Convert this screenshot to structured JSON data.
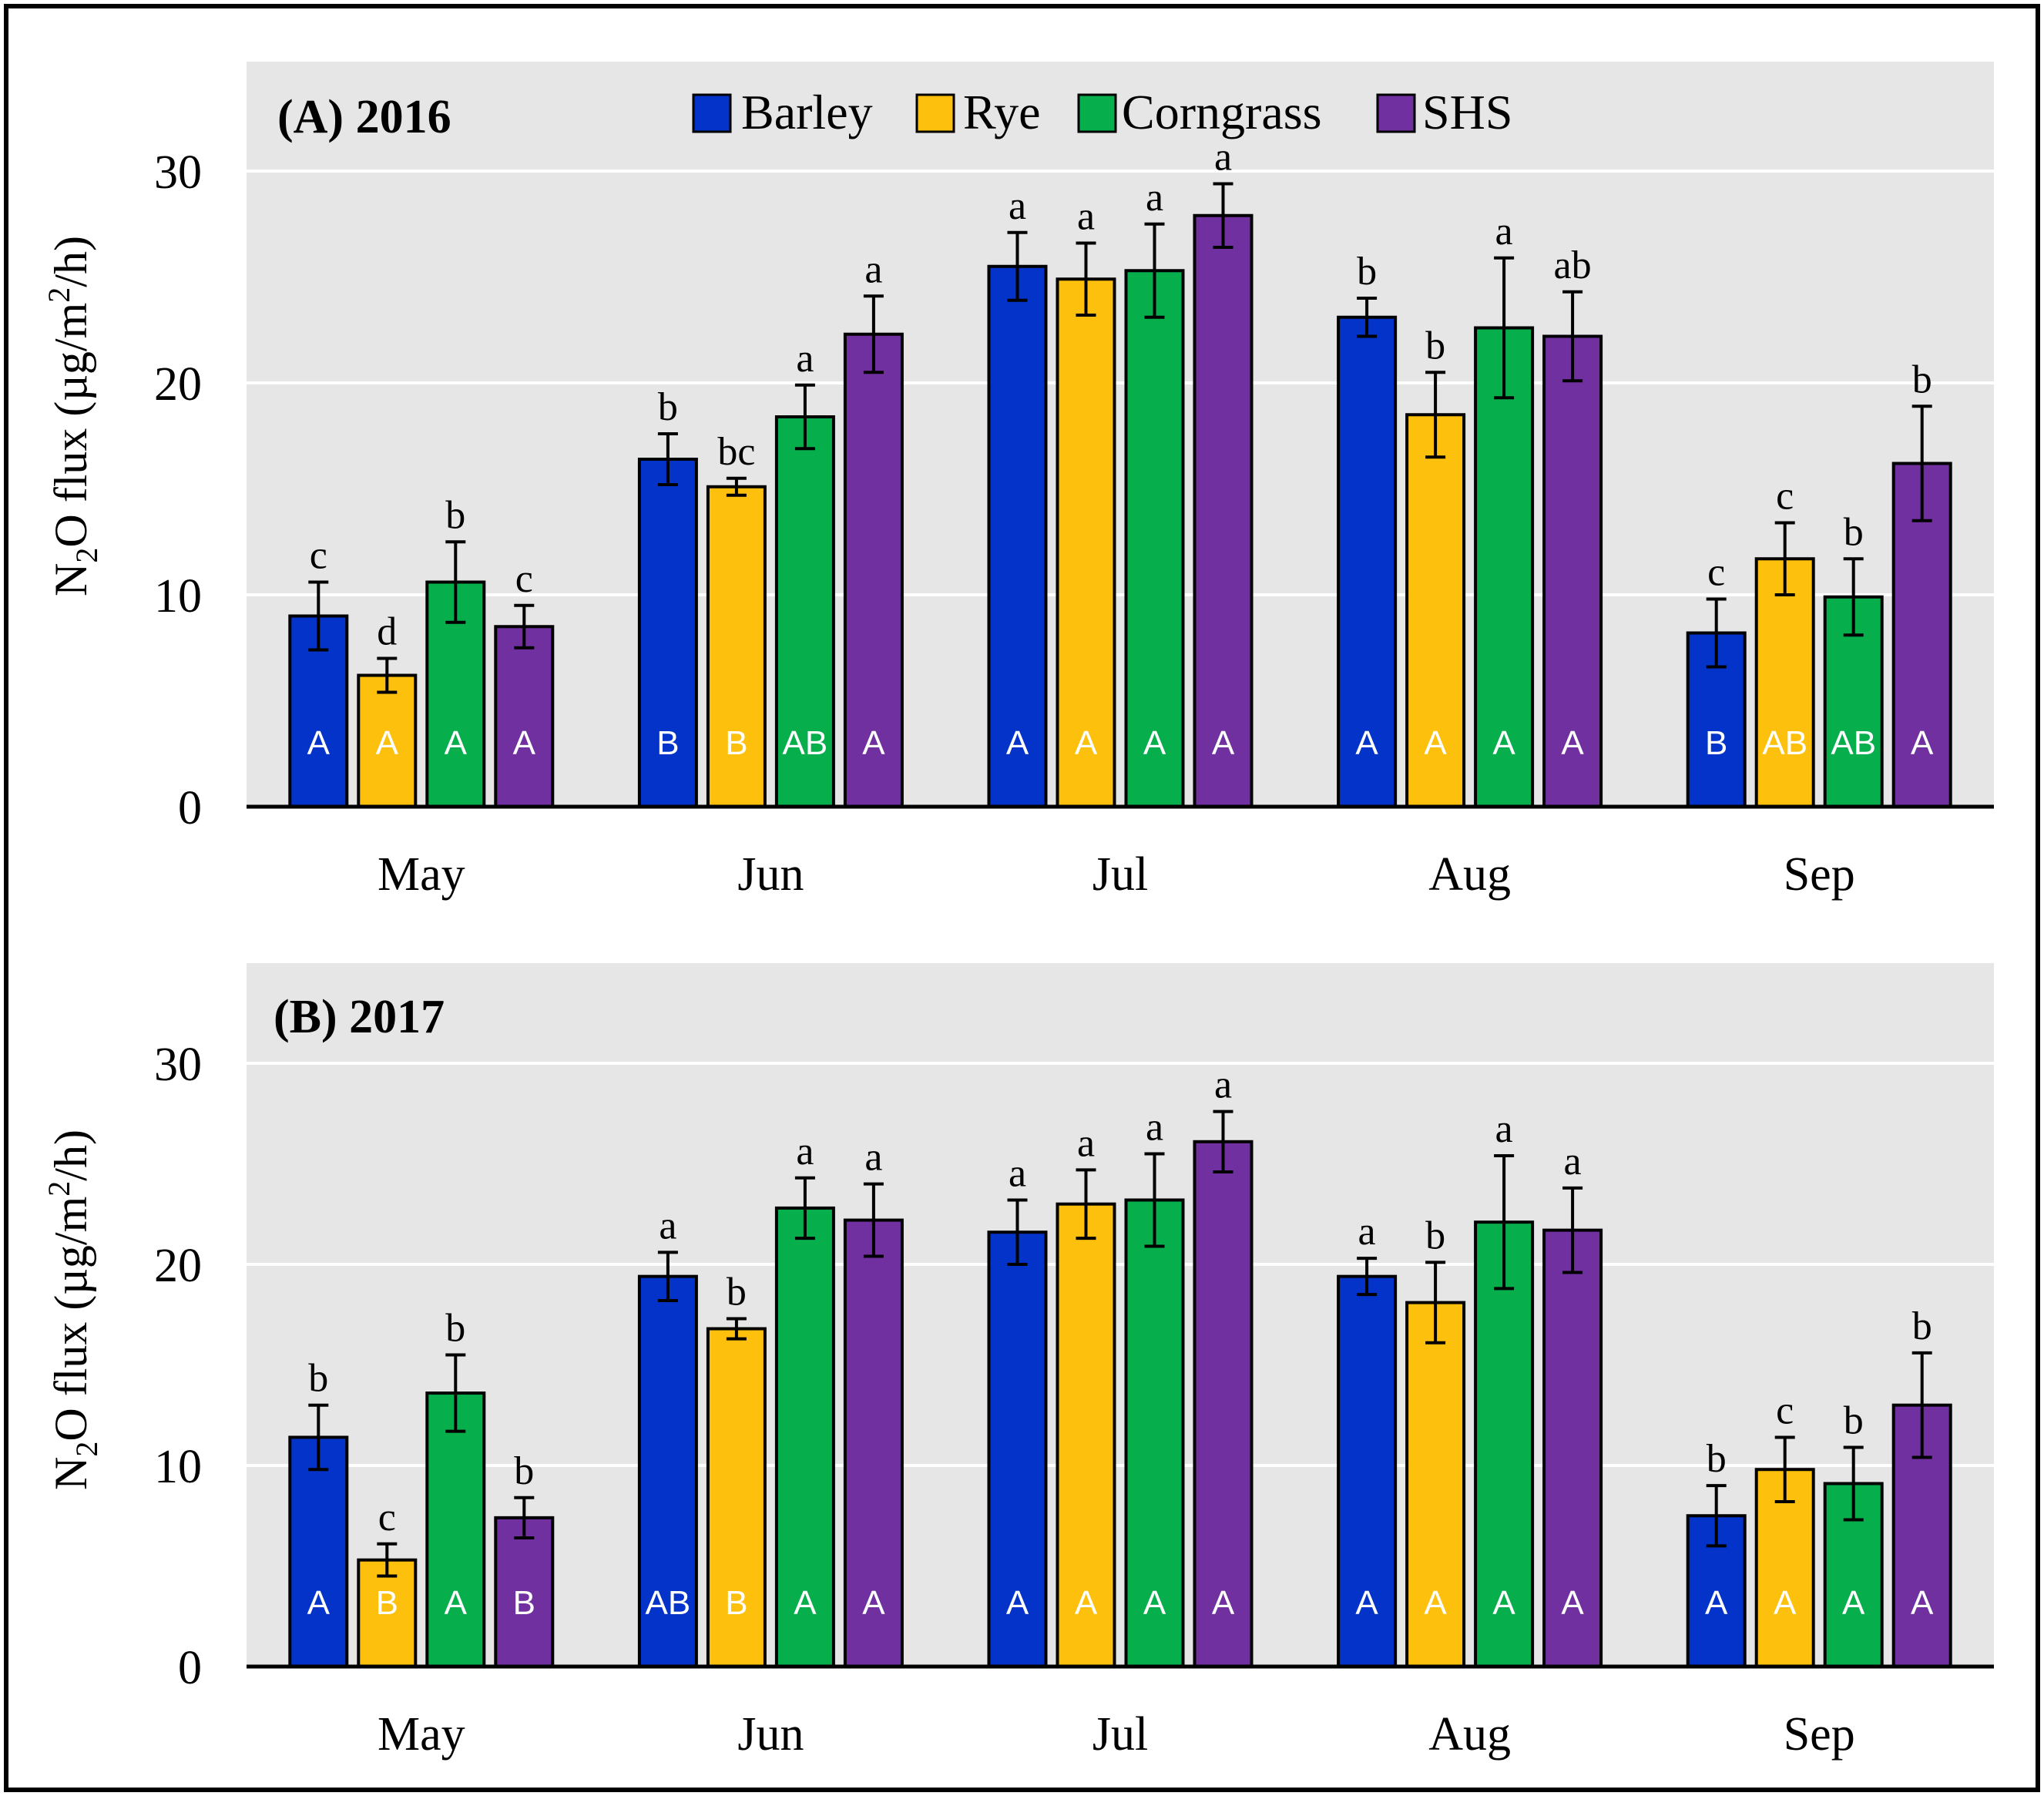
{
  "colors": {
    "Barley": "#0433c9",
    "Rye": "#fdc00d",
    "Corngrass": "#07ae4c",
    "SHS": "#7030a0",
    "plot_bg": "#e6e6e6",
    "gridline": "#ffffff",
    "axis": "#000000"
  },
  "legend": [
    "Barley",
    "Rye",
    "Corngrass",
    "SHS"
  ],
  "chart_data": [
    {
      "type": "bar",
      "title": "(A) 2016",
      "xlabel": "",
      "ylabel": "N2O flux (µg/m2/h)",
      "ylim": [
        0,
        35
      ],
      "yticks": [
        0,
        10,
        20,
        30
      ],
      "legend_position": "top-center",
      "categories": [
        "May",
        "Jun",
        "Jul",
        "Aug",
        "Sep"
      ],
      "series": [
        {
          "name": "Barley",
          "values": [
            9.0,
            16.4,
            25.5,
            23.1,
            8.2
          ],
          "errors": [
            1.6,
            1.2,
            1.6,
            0.9,
            1.6
          ],
          "letters": [
            "c",
            "b",
            "a",
            "b",
            "c"
          ],
          "inner_letters": [
            "A",
            "B",
            "A",
            "A",
            "B"
          ]
        },
        {
          "name": "Rye",
          "values": [
            6.2,
            15.1,
            24.9,
            18.5,
            11.7
          ],
          "errors": [
            0.8,
            0.4,
            1.7,
            2.0,
            1.7
          ],
          "letters": [
            "d",
            "bc",
            "a",
            "b",
            "c"
          ],
          "inner_letters": [
            "A",
            "B",
            "A",
            "A",
            "AB"
          ]
        },
        {
          "name": "Corngrass",
          "values": [
            10.6,
            18.4,
            25.3,
            22.6,
            9.9
          ],
          "errors": [
            1.9,
            1.5,
            2.2,
            3.3,
            1.8
          ],
          "letters": [
            "b",
            "a",
            "a",
            "a",
            "b"
          ],
          "inner_letters": [
            "A",
            "AB",
            "A",
            "A",
            "AB"
          ]
        },
        {
          "name": "SHS",
          "values": [
            8.5,
            22.3,
            27.9,
            22.2,
            16.2
          ],
          "errors": [
            1.0,
            1.8,
            1.5,
            2.1,
            2.7
          ],
          "letters": [
            "c",
            "a",
            "a",
            "ab",
            "b"
          ],
          "inner_letters": [
            "A",
            "A",
            "A",
            "A",
            "A"
          ]
        }
      ]
    },
    {
      "type": "bar",
      "title": "(B) 2017",
      "xlabel": "",
      "ylabel": "N2O flux (µg/m2/h)",
      "ylim": [
        0,
        35
      ],
      "yticks": [
        0,
        10,
        20,
        30
      ],
      "categories": [
        "May",
        "Jun",
        "Jul",
        "Aug",
        "Sep"
      ],
      "series": [
        {
          "name": "Barley",
          "values": [
            11.4,
            19.4,
            21.6,
            19.4,
            7.5
          ],
          "errors": [
            1.6,
            1.2,
            1.6,
            0.9,
            1.5
          ],
          "letters": [
            "b",
            "a",
            "a",
            "a",
            "b"
          ],
          "inner_letters": [
            "A",
            "AB",
            "A",
            "A",
            "A"
          ]
        },
        {
          "name": "Rye",
          "values": [
            5.3,
            16.8,
            23.0,
            18.1,
            9.8
          ],
          "errors": [
            0.8,
            0.5,
            1.7,
            2.0,
            1.6
          ],
          "letters": [
            "c",
            "b",
            "a",
            "b",
            "c"
          ],
          "inner_letters": [
            "B",
            "B",
            "A",
            "A",
            "A"
          ]
        },
        {
          "name": "Corngrass",
          "values": [
            13.6,
            22.8,
            23.2,
            22.1,
            9.1
          ],
          "errors": [
            1.9,
            1.5,
            2.3,
            3.3,
            1.8
          ],
          "letters": [
            "b",
            "a",
            "a",
            "a",
            "b"
          ],
          "inner_letters": [
            "A",
            "A",
            "A",
            "A",
            "A"
          ]
        },
        {
          "name": "SHS",
          "values": [
            7.4,
            22.2,
            26.1,
            21.7,
            13.0
          ],
          "errors": [
            1.0,
            1.8,
            1.5,
            2.1,
            2.6
          ],
          "letters": [
            "b",
            "a",
            "a",
            "a",
            "b"
          ],
          "inner_letters": [
            "B",
            "A",
            "A",
            "A",
            "A"
          ]
        }
      ]
    }
  ]
}
